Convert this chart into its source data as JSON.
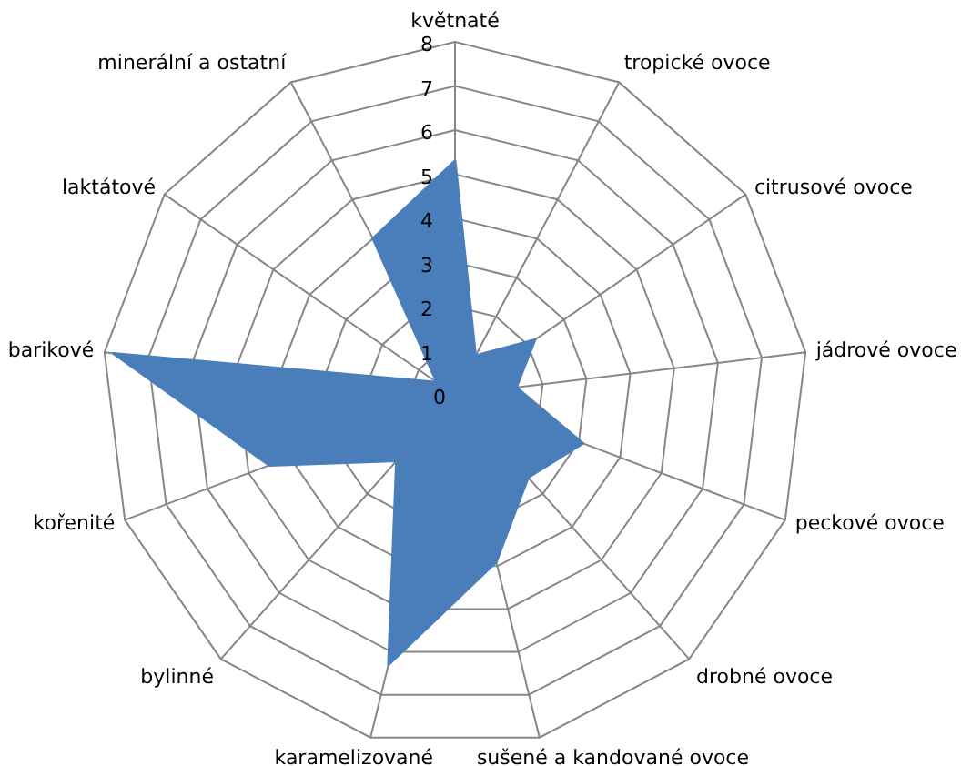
{
  "chart_data": {
    "type": "radar",
    "categories": [
      "květnaté",
      "tropické ovoce",
      "citrusové ovoce",
      "jádrové ovoce",
      "peckové ovoce",
      "drobné ovoce",
      "sušené a kandované ovoce",
      "karamelizované",
      "bylinné",
      "kořenité",
      "barikové",
      "laktátové",
      "minerální a ostatní"
    ],
    "series": [
      {
        "color": "#4a7ebb",
        "values": [
          5.3,
          1.0,
          2.2,
          1.4,
          3.1,
          2.5,
          3.9,
          6.3,
          2.0,
          4.5,
          7.8,
          0.5,
          4.0
        ]
      }
    ],
    "ylim": [
      0,
      8
    ],
    "yticks": [
      0,
      1,
      2,
      3,
      4,
      5,
      6,
      7,
      8
    ],
    "grid": true
  }
}
